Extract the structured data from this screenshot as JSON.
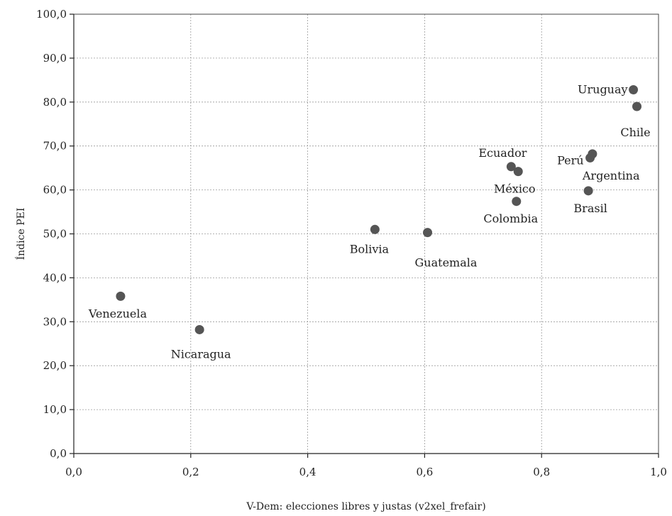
{
  "chart_data": {
    "type": "scatter",
    "xlabel": "V-Dem: elecciones libres y justas (v2xel_frefair)",
    "ylabel": "Índice PEI",
    "xlim": [
      0,
      1
    ],
    "ylim": [
      0,
      100
    ],
    "x_ticks": [
      "0,0",
      "0,2",
      "0,4",
      "0,6",
      "0,8",
      "1,0"
    ],
    "y_ticks": [
      "0,0",
      "10,0",
      "20,0",
      "30,0",
      "40,0",
      "50,0",
      "60,0",
      "70,0",
      "80,0",
      "90,0",
      "100,0"
    ],
    "grid": true,
    "marker_color": "#555555",
    "points": [
      {
        "label": "Venezuela",
        "x": 0.08,
        "y": 35.8
      },
      {
        "label": "Nicaragua",
        "x": 0.215,
        "y": 28.2
      },
      {
        "label": "Bolivia",
        "x": 0.515,
        "y": 51.0
      },
      {
        "label": "Guatemala",
        "x": 0.605,
        "y": 50.3
      },
      {
        "label": "Ecuador",
        "x": 0.748,
        "y": 65.3
      },
      {
        "label": "México",
        "x": 0.76,
        "y": 64.2
      },
      {
        "label": "Colombia",
        "x": 0.757,
        "y": 57.4
      },
      {
        "label": "Perú",
        "x": 0.883,
        "y": 67.3
      },
      {
        "label": "Argentina",
        "x": 0.887,
        "y": 68.2
      },
      {
        "label": "Brasil",
        "x": 0.88,
        "y": 59.8
      },
      {
        "label": "Uruguay",
        "x": 0.957,
        "y": 82.8
      },
      {
        "label": "Chile",
        "x": 0.963,
        "y": 79.0
      }
    ]
  }
}
